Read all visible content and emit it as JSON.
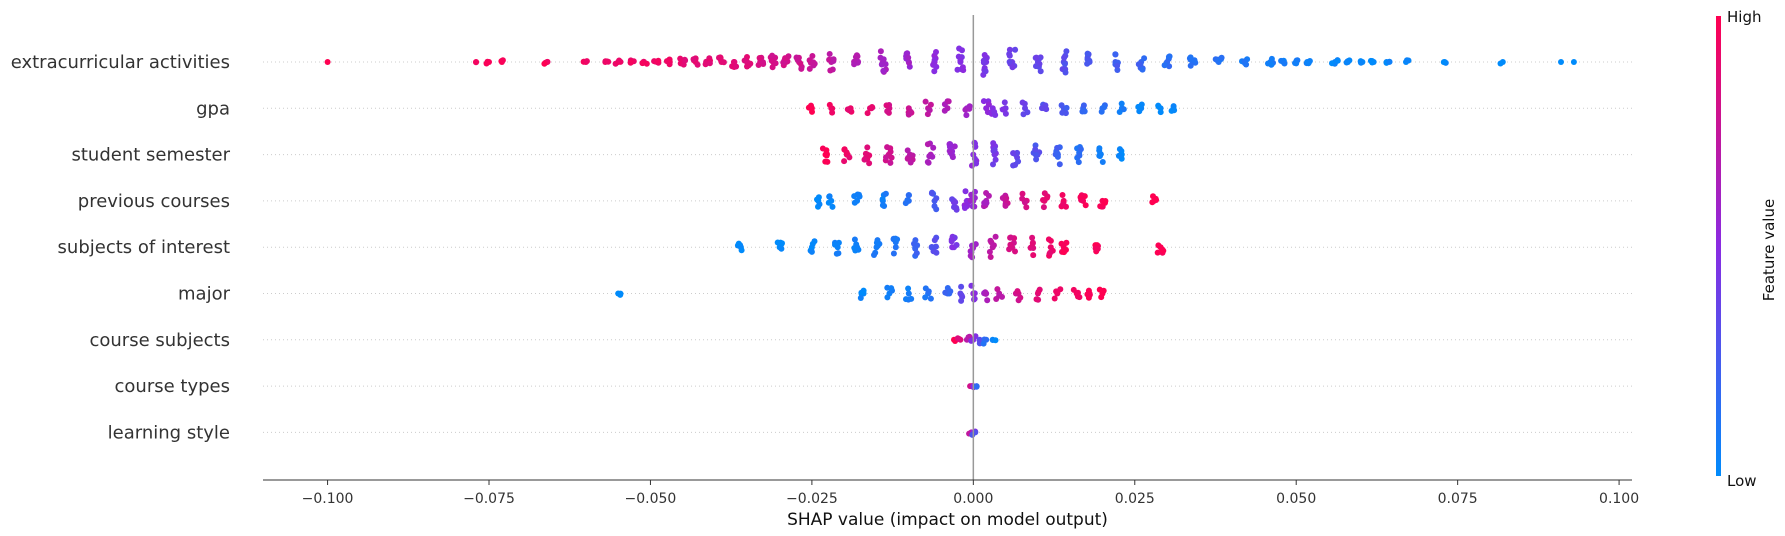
{
  "chart_data": {
    "type": "scatter",
    "subtype": "shap-beeswarm",
    "xlabel": "SHAP value (impact on model output)",
    "xlim": [
      -0.11,
      0.102
    ],
    "xticks": [
      -0.1,
      -0.075,
      -0.05,
      -0.025,
      0.0,
      0.025,
      0.05,
      0.075,
      0.1
    ],
    "xtick_labels": [
      "−0.100",
      "−0.075",
      "−0.050",
      "−0.025",
      "0.000",
      "0.025",
      "0.050",
      "0.075",
      "0.100"
    ],
    "zero_line": 0.0,
    "features": [
      {
        "name": "extracurricular activities",
        "shap_values": [
          -0.1,
          -0.077,
          -0.075,
          -0.073,
          -0.066,
          -0.06,
          -0.057,
          -0.055,
          -0.053,
          -0.051,
          -0.049,
          -0.047,
          -0.045,
          -0.043,
          -0.041,
          -0.039,
          -0.037,
          -0.035,
          -0.033,
          -0.031,
          -0.029,
          -0.027,
          -0.025,
          -0.022,
          -0.018,
          -0.014,
          -0.01,
          -0.006,
          -0.002,
          0.002,
          0.006,
          0.01,
          0.014,
          0.018,
          0.022,
          0.026,
          0.03,
          0.034,
          0.038,
          0.042,
          0.046,
          0.048,
          0.05,
          0.052,
          0.056,
          0.058,
          0.06,
          0.062,
          0.064,
          0.067,
          0.073,
          0.082,
          0.091,
          0.093
        ],
        "feature_values": [
          1.0,
          0.98,
          0.97,
          0.97,
          0.96,
          0.95,
          0.94,
          0.94,
          0.93,
          0.93,
          0.92,
          0.92,
          0.9,
          0.9,
          0.88,
          0.88,
          0.86,
          0.85,
          0.84,
          0.82,
          0.8,
          0.78,
          0.75,
          0.72,
          0.68,
          0.62,
          0.58,
          0.52,
          0.48,
          0.44,
          0.4,
          0.36,
          0.32,
          0.28,
          0.24,
          0.2,
          0.16,
          0.14,
          0.12,
          0.1,
          0.08,
          0.07,
          0.06,
          0.05,
          0.04,
          0.03,
          0.03,
          0.02,
          0.02,
          0.01,
          0.01,
          0.0,
          0.0,
          0.0
        ],
        "density": 1.0
      },
      {
        "name": "gpa",
        "shap_values": [
          -0.025,
          -0.022,
          -0.019,
          -0.016,
          -0.013,
          -0.01,
          -0.007,
          -0.004,
          -0.001,
          0.002,
          0.003,
          0.005,
          0.008,
          0.011,
          0.014,
          0.017,
          0.02,
          0.023,
          0.026,
          0.029,
          0.031
        ],
        "feature_values": [
          1.0,
          0.96,
          0.92,
          0.88,
          0.82,
          0.78,
          0.72,
          0.66,
          0.58,
          0.52,
          0.48,
          0.44,
          0.38,
          0.32,
          0.26,
          0.2,
          0.14,
          0.08,
          0.04,
          0.02,
          0.0
        ],
        "density": 0.55
      },
      {
        "name": "student semester",
        "shap_values": [
          -0.0229,
          -0.0196,
          -0.0164,
          -0.0131,
          -0.0098,
          -0.0066,
          -0.0033,
          0.0,
          0.0033,
          0.0066,
          0.0098,
          0.0131,
          0.0164,
          0.0196,
          0.0229
        ],
        "feature_values": [
          1.0,
          0.93,
          0.86,
          0.79,
          0.71,
          0.64,
          0.57,
          0.5,
          0.43,
          0.36,
          0.29,
          0.21,
          0.14,
          0.07,
          0.0
        ],
        "density": 0.9
      },
      {
        "name": "previous courses",
        "shap_values": [
          -0.024,
          -0.022,
          -0.018,
          -0.014,
          -0.01,
          -0.006,
          -0.003,
          -0.001,
          0.0,
          0.002,
          0.005,
          0.008,
          0.011,
          0.014,
          0.017,
          0.02,
          0.028
        ],
        "feature_values": [
          0.0,
          0.02,
          0.05,
          0.08,
          0.15,
          0.25,
          0.4,
          0.5,
          0.55,
          0.65,
          0.75,
          0.82,
          0.88,
          0.92,
          0.96,
          0.98,
          1.0
        ],
        "density": 0.7
      },
      {
        "name": "subjects of interest",
        "shap_values": [
          -0.036,
          -0.03,
          -0.025,
          -0.021,
          -0.018,
          -0.015,
          -0.012,
          -0.009,
          -0.006,
          -0.003,
          0.0,
          0.003,
          0.006,
          0.009,
          0.012,
          0.014,
          0.019,
          0.029
        ],
        "feature_values": [
          0.0,
          0.0,
          0.02,
          0.04,
          0.06,
          0.08,
          0.12,
          0.2,
          0.3,
          0.45,
          0.6,
          0.72,
          0.82,
          0.88,
          0.92,
          0.96,
          0.98,
          1.0
        ],
        "density": 0.8
      },
      {
        "name": "major",
        "shap_values": [
          -0.055,
          -0.017,
          -0.013,
          -0.01,
          -0.007,
          -0.004,
          -0.002,
          0.0,
          0.002,
          0.004,
          0.007,
          0.01,
          0.013,
          0.016,
          0.018,
          0.02
        ],
        "feature_values": [
          0.0,
          0.02,
          0.05,
          0.08,
          0.12,
          0.2,
          0.35,
          0.5,
          0.62,
          0.72,
          0.8,
          0.86,
          0.92,
          0.96,
          0.98,
          1.0
        ],
        "density": 0.55
      },
      {
        "name": "course subjects",
        "shap_values": [
          -0.003,
          -0.002,
          -0.001,
          0.0,
          0.001,
          0.002,
          0.003
        ],
        "feature_values": [
          1.0,
          0.85,
          0.7,
          0.5,
          0.3,
          0.15,
          0.0
        ],
        "density": 0.3
      },
      {
        "name": "course types",
        "shap_values": [
          -0.0005,
          0.0,
          0.0005
        ],
        "feature_values": [
          0.8,
          0.5,
          0.2
        ],
        "density": 0.2
      },
      {
        "name": "learning style",
        "shap_values": [
          -0.0003,
          0.0,
          0.0003
        ],
        "feature_values": [
          0.7,
          0.5,
          0.3
        ],
        "density": 0.2
      }
    ],
    "colorbar": {
      "title": "Feature value",
      "high_label": "High",
      "low_label": "Low",
      "high_color": "#ff0051",
      "mid_color": "#8a2be2",
      "low_color": "#008bfb"
    },
    "grid": false
  }
}
